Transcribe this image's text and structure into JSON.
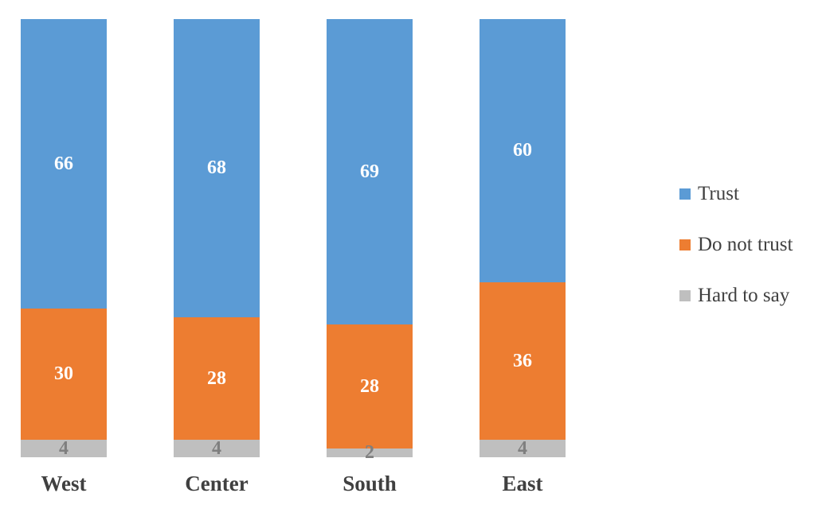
{
  "chart_data": {
    "type": "bar",
    "subtype": "stacked-percent",
    "orientation": "vertical",
    "title": "",
    "xlabel": "",
    "ylabel": "",
    "grid": false,
    "axes_visible": false,
    "legend_position": "right",
    "categories": [
      "West",
      "Center",
      "South",
      "East"
    ],
    "series": [
      {
        "name": "Trust",
        "color": "#5B9BD5",
        "label_color": "#FFFFFF",
        "values": [
          66,
          68,
          69,
          60
        ]
      },
      {
        "name": "Do not trust",
        "color": "#ED7D31",
        "label_color": "#FFFFFF",
        "values": [
          30,
          28,
          28,
          36
        ]
      },
      {
        "name": "Hard to say",
        "color": "#BFBFBF",
        "label_color": "#7F7F7F",
        "values": [
          4,
          4,
          2,
          4
        ]
      }
    ],
    "colors": {
      "trust": "#5B9BD5",
      "do_not_trust": "#ED7D31",
      "hard_to_say": "#BFBFBF",
      "axis_text": "#404040",
      "gray_label_text": "#7F7F7F",
      "background": "#FFFFFF"
    }
  },
  "legend": {
    "items": [
      {
        "label": "Trust"
      },
      {
        "label": "Do not trust"
      },
      {
        "label": "Hard to say"
      }
    ]
  }
}
